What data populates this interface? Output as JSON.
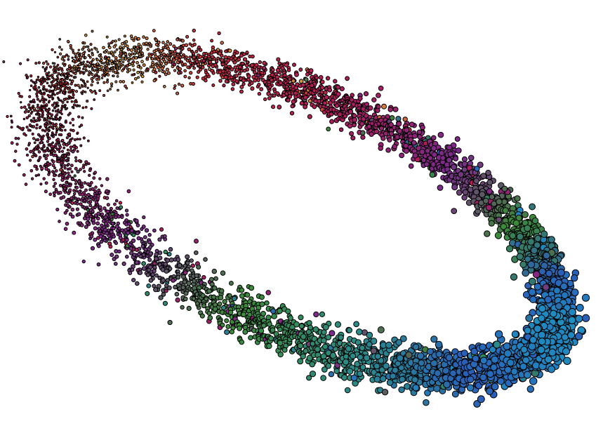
{
  "figure": {
    "kind": "3d-scatter-torus",
    "background": "#ffffff",
    "marker_edge_color": "#000000",
    "palette": [
      "#d9a03a",
      "#c4293a",
      "#b01c5a",
      "#7b2a8c",
      "#3c8a3a",
      "#2a8a8a",
      "#2a5fb8",
      "#1f8fc0"
    ],
    "note": ""
  }
}
